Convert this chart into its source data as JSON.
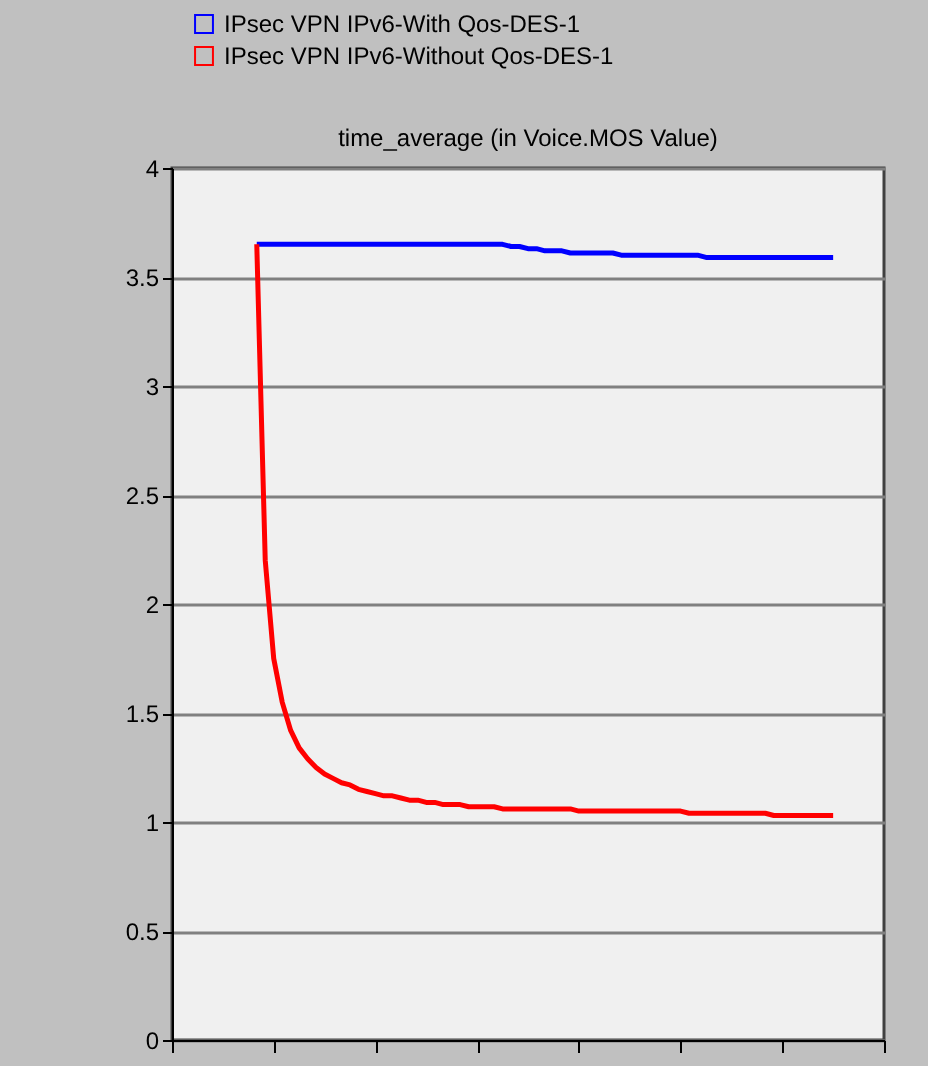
{
  "chart_data": {
    "type": "line",
    "title": "time_average (in Voice.MOS Value)",
    "categories": [
      null,
      null,
      null,
      null,
      null,
      null,
      null,
      null,
      null,
      null,
      null,
      null,
      null,
      null,
      null,
      null,
      null,
      null,
      null,
      null,
      null,
      null,
      null,
      null,
      null,
      null,
      null,
      null,
      null,
      null,
      null,
      null,
      null,
      null,
      null,
      null,
      null,
      null,
      null,
      null,
      null,
      null,
      null,
      null,
      null,
      null,
      null,
      null,
      null,
      null,
      null,
      null,
      null,
      null,
      null,
      null,
      null,
      null,
      null,
      null,
      null,
      null,
      null,
      null,
      null,
      null,
      null,
      null,
      null,
      null,
      null,
      null,
      null,
      null,
      null,
      null,
      null,
      null,
      null,
      null,
      null,
      null,
      null,
      null,
      null
    ],
    "series": [
      {
        "name": "IPsec VPN IPv6-With Qos-DES-1",
        "color": "#0000ff",
        "values": [
          null,
          null,
          null,
          null,
          null,
          null,
          null,
          null,
          null,
          null,
          3.65,
          3.65,
          3.65,
          3.65,
          3.65,
          3.65,
          3.65,
          3.65,
          3.65,
          3.65,
          3.65,
          3.65,
          3.65,
          3.65,
          3.65,
          3.65,
          3.65,
          3.65,
          3.65,
          3.65,
          3.65,
          3.65,
          3.65,
          3.65,
          3.65,
          3.65,
          3.65,
          3.65,
          3.65,
          3.65,
          3.64,
          3.64,
          3.63,
          3.63,
          3.62,
          3.62,
          3.62,
          3.61,
          3.61,
          3.61,
          3.61,
          3.61,
          3.61,
          3.6,
          3.6,
          3.6,
          3.6,
          3.6,
          3.6,
          3.6,
          3.6,
          3.6,
          3.6,
          3.59,
          3.59,
          3.59,
          3.59,
          3.59,
          3.59,
          3.59,
          3.59,
          3.59,
          3.59,
          3.59,
          3.59,
          3.59,
          3.59,
          3.59,
          3.59,
          null,
          null,
          null,
          null,
          null,
          null
        ]
      },
      {
        "name": "IPsec VPN IPv6-Without Qos-DES-1",
        "color": "#ff0000",
        "values": [
          null,
          null,
          null,
          null,
          null,
          null,
          null,
          null,
          null,
          null,
          3.65,
          2.2,
          1.75,
          1.55,
          1.42,
          1.34,
          1.29,
          1.25,
          1.22,
          1.2,
          1.18,
          1.17,
          1.15,
          1.14,
          1.13,
          1.12,
          1.12,
          1.11,
          1.1,
          1.1,
          1.09,
          1.09,
          1.08,
          1.08,
          1.08,
          1.07,
          1.07,
          1.07,
          1.07,
          1.06,
          1.06,
          1.06,
          1.06,
          1.06,
          1.06,
          1.06,
          1.06,
          1.06,
          1.05,
          1.05,
          1.05,
          1.05,
          1.05,
          1.05,
          1.05,
          1.05,
          1.05,
          1.05,
          1.05,
          1.05,
          1.05,
          1.04,
          1.04,
          1.04,
          1.04,
          1.04,
          1.04,
          1.04,
          1.04,
          1.04,
          1.04,
          1.03,
          1.03,
          1.03,
          1.03,
          1.03,
          1.03,
          1.03,
          1.03,
          null,
          null,
          null,
          null,
          null,
          null
        ]
      }
    ],
    "ylim": [
      0,
      4
    ],
    "yticks": [
      0,
      0.5,
      1,
      1.5,
      2,
      2.5,
      3,
      3.5,
      4
    ],
    "grid": "y",
    "legend": "top left",
    "tick_labels": "y",
    "line_style": "solid",
    "marker": "none"
  }
}
